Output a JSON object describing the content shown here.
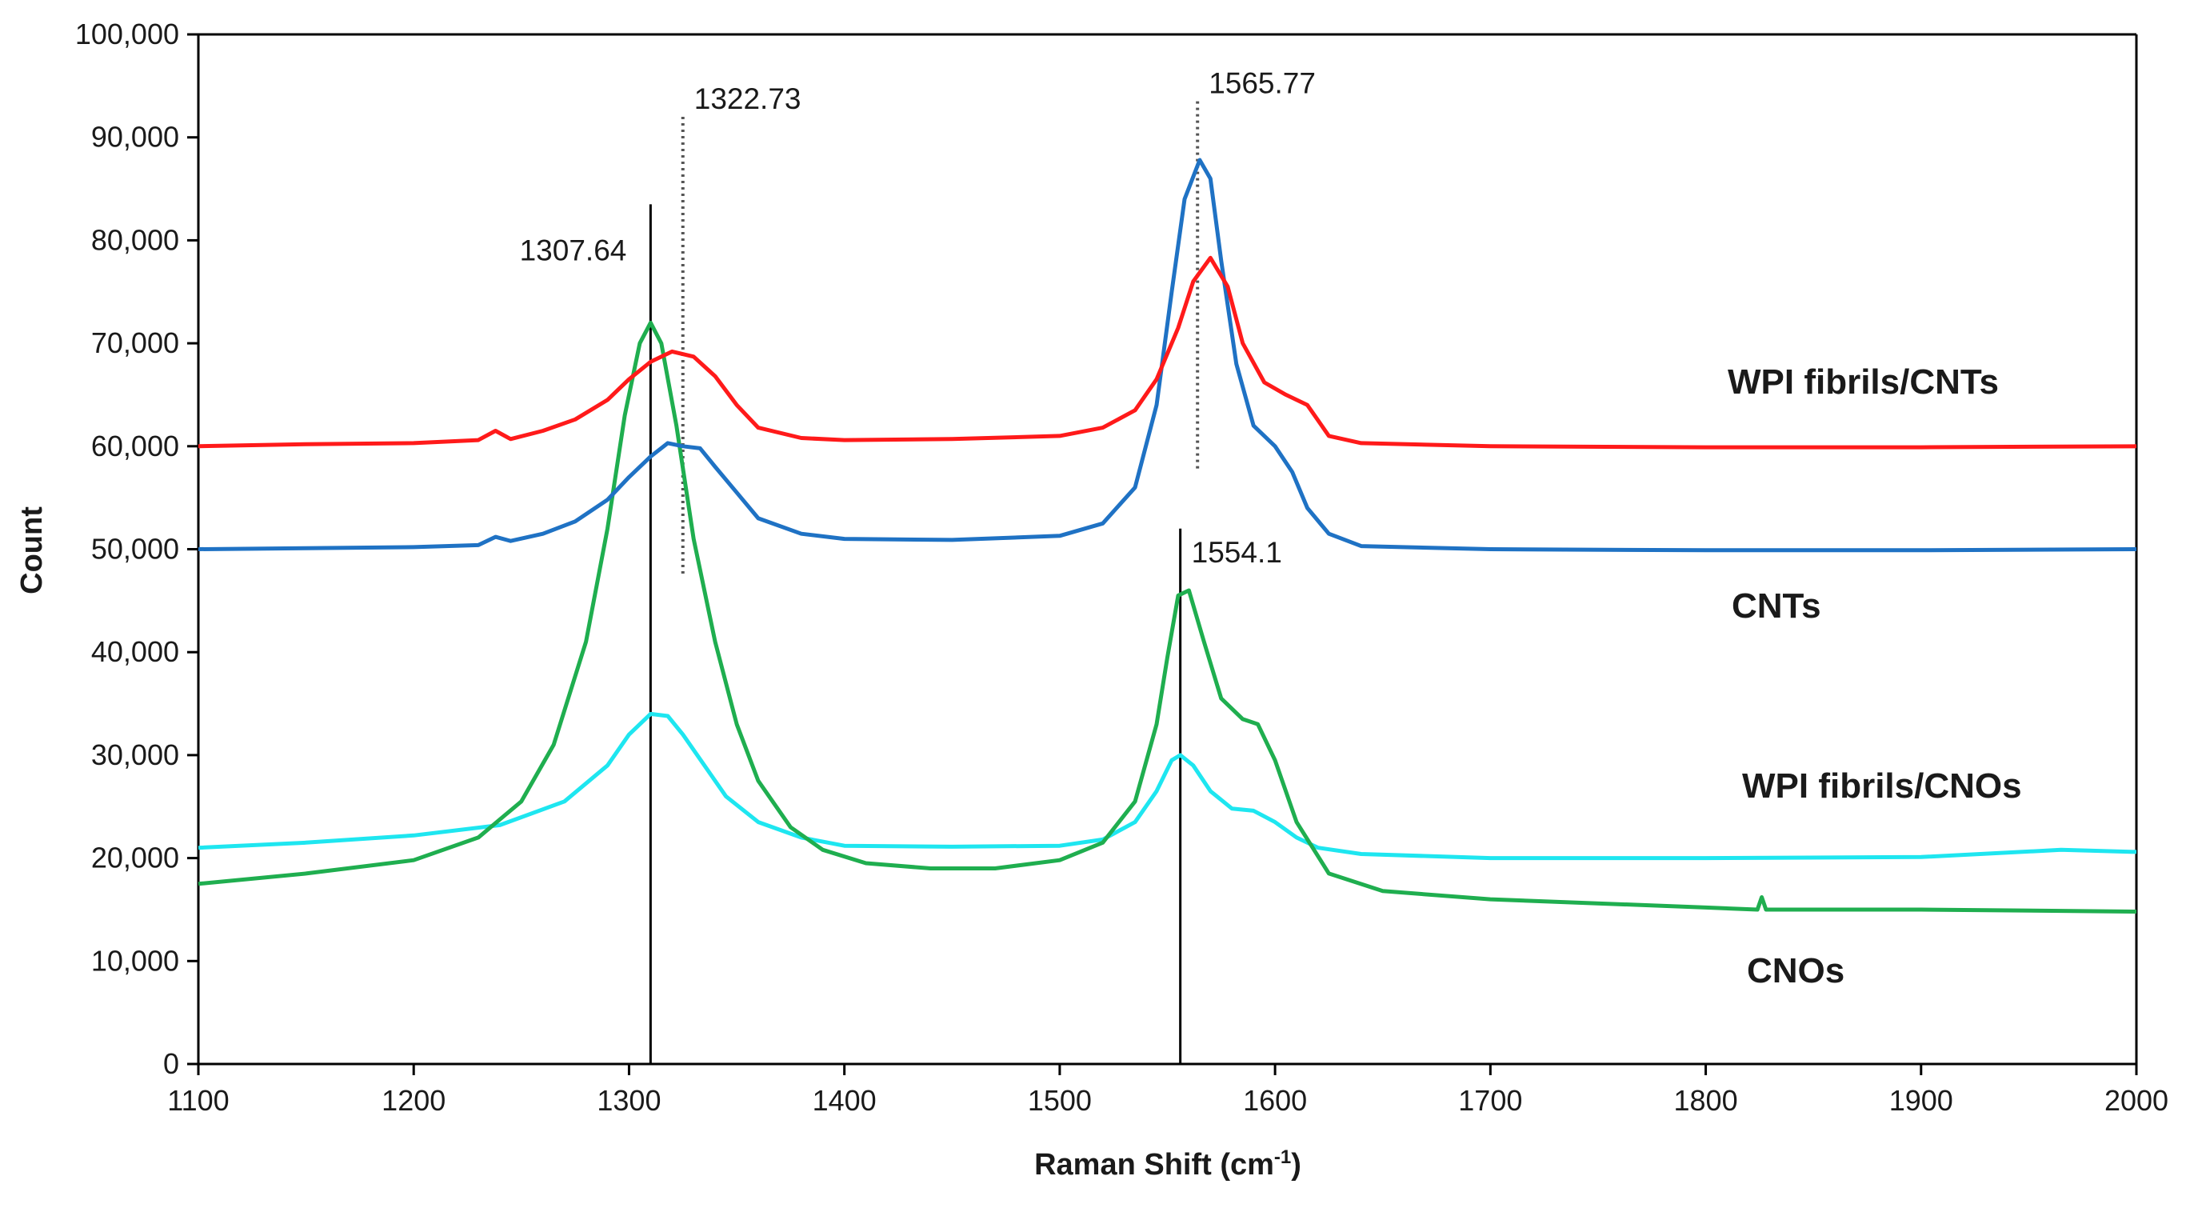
{
  "chart_data": {
    "type": "line",
    "title": "",
    "xlabel": "Raman Shift (cm",
    "xlabel_sup": "-1",
    "xlabel_close": ")",
    "ylabel": "Count",
    "xlim": [
      1100,
      2000
    ],
    "ylim": [
      0,
      100000
    ],
    "x_ticks": [
      1100,
      1200,
      1300,
      1400,
      1500,
      1600,
      1700,
      1800,
      1900,
      2000
    ],
    "x_tick_labels": [
      "1100",
      "1200",
      "1300",
      "1400",
      "1500",
      "1600",
      "1700",
      "1800",
      "1900",
      "2000"
    ],
    "y_ticks": [
      0,
      10000,
      20000,
      30000,
      40000,
      50000,
      60000,
      70000,
      80000,
      90000,
      100000
    ],
    "y_tick_labels": [
      "0",
      "10,000",
      "20,000",
      "30,000",
      "40,000",
      "50,000",
      "60,000",
      "70,000",
      "80,000",
      "90,000",
      "100,000"
    ],
    "grid": false,
    "series": [
      {
        "name": "WPI fibrils/CNTs",
        "color": "#ff1a1a",
        "x": [
          1100,
          1150,
          1200,
          1230,
          1238,
          1245,
          1260,
          1275,
          1290,
          1300,
          1310,
          1320,
          1330,
          1340,
          1350,
          1360,
          1380,
          1400,
          1450,
          1500,
          1520,
          1535,
          1545,
          1555,
          1562,
          1570,
          1578,
          1585,
          1595,
          1605,
          1615,
          1625,
          1640,
          1700,
          1800,
          1900,
          2000
        ],
        "y": [
          60000,
          60200,
          60300,
          60600,
          61500,
          60700,
          61500,
          62600,
          64500,
          66500,
          68200,
          69200,
          68700,
          66800,
          64000,
          61800,
          60800,
          60600,
          60700,
          61000,
          61800,
          63500,
          66500,
          71500,
          76000,
          78300,
          75500,
          70000,
          66200,
          65000,
          64000,
          61000,
          60300,
          60000,
          59900,
          59900,
          60000
        ],
        "label_position": "right"
      },
      {
        "name": "CNTs",
        "color": "#1f72c4",
        "x": [
          1100,
          1150,
          1200,
          1230,
          1238,
          1245,
          1260,
          1275,
          1290,
          1300,
          1310,
          1318,
          1325,
          1333,
          1340,
          1350,
          1360,
          1380,
          1400,
          1450,
          1500,
          1520,
          1535,
          1545,
          1552,
          1558,
          1565,
          1570,
          1575,
          1582,
          1590,
          1600,
          1608,
          1615,
          1625,
          1640,
          1700,
          1800,
          1900,
          2000
        ],
        "y": [
          50000,
          50100,
          50200,
          50400,
          51200,
          50800,
          51500,
          52700,
          54800,
          57000,
          59000,
          60300,
          60000,
          59800,
          58000,
          55500,
          53000,
          51500,
          51000,
          50900,
          51300,
          52500,
          56000,
          64000,
          75000,
          84000,
          87800,
          86000,
          78000,
          68000,
          62000,
          60000,
          57500,
          54000,
          51500,
          50300,
          50000,
          49900,
          49900,
          50000
        ],
        "label_position": "right"
      },
      {
        "name": "WPI fibrils/CNOs",
        "color": "#1ee6f0",
        "x": [
          1100,
          1150,
          1200,
          1240,
          1270,
          1290,
          1300,
          1310,
          1318,
          1325,
          1335,
          1345,
          1360,
          1380,
          1400,
          1450,
          1500,
          1520,
          1535,
          1545,
          1552,
          1556,
          1562,
          1570,
          1580,
          1590,
          1600,
          1610,
          1620,
          1640,
          1700,
          1800,
          1900,
          1965,
          2000
        ],
        "y": [
          21000,
          21500,
          22200,
          23200,
          25500,
          29000,
          32000,
          34000,
          33800,
          32000,
          29000,
          26000,
          23500,
          22000,
          21200,
          21100,
          21200,
          21800,
          23500,
          26500,
          29500,
          30000,
          29000,
          26500,
          24800,
          24600,
          23500,
          22000,
          21000,
          20400,
          20000,
          20000,
          20100,
          20800,
          20600
        ],
        "label_position": "right"
      },
      {
        "name": "CNOs",
        "color": "#1fae4f",
        "x": [
          1100,
          1150,
          1200,
          1230,
          1250,
          1265,
          1280,
          1290,
          1298,
          1305,
          1310,
          1315,
          1322,
          1330,
          1340,
          1350,
          1360,
          1375,
          1390,
          1410,
          1440,
          1470,
          1500,
          1520,
          1535,
          1545,
          1550,
          1555,
          1560,
          1567,
          1575,
          1585,
          1592,
          1600,
          1610,
          1625,
          1650,
          1700,
          1800,
          1824,
          1826,
          1828,
          1900,
          2000
        ],
        "y": [
          17500,
          18500,
          19800,
          22000,
          25500,
          31000,
          41000,
          52000,
          63000,
          70000,
          72000,
          70000,
          62000,
          51000,
          41000,
          33000,
          27500,
          23000,
          20800,
          19500,
          19000,
          19000,
          19800,
          21500,
          25500,
          33000,
          39500,
          45500,
          46000,
          41000,
          35500,
          33500,
          33000,
          29500,
          23500,
          18500,
          16800,
          16000,
          15200,
          15000,
          16200,
          15000,
          15000,
          14800
        ],
        "label_position": "right"
      }
    ],
    "annotations": [
      {
        "label": "1307.64",
        "x": 1310,
        "y_top": 83500,
        "style": "solid"
      },
      {
        "label": "1322.73",
        "x": 1325,
        "y_top": 92000,
        "style": "dotted"
      },
      {
        "label": "1565.77",
        "x": 1564,
        "y_top": 93500,
        "style": "dotted"
      },
      {
        "label": "1554.1",
        "x": 1556,
        "y_top": 52000,
        "style": "solid"
      }
    ]
  }
}
